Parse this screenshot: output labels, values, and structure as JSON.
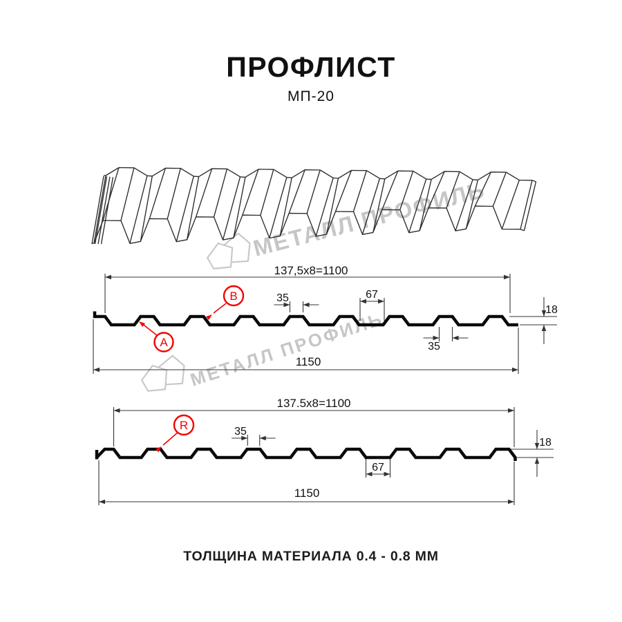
{
  "title": "ПРОФЛИСТ",
  "subtitle": "МП-20",
  "footer": "ТОЛЩИНА МАТЕРИАЛА 0.4 - 0.8 ММ",
  "watermark": {
    "text": "МЕТАЛЛ ПРОФИЛЬ"
  },
  "colors": {
    "accent_red": "#f40000",
    "line": "#111111",
    "watermark": "#c6c6c6"
  },
  "diagram_top": {
    "module_width": "137,5x8=1100",
    "rib_top_width": "35",
    "valley_width": "67",
    "profile_height": "18",
    "edge_rib_width": "35",
    "overall_width": "1150",
    "label_a": "A",
    "label_b": "B"
  },
  "diagram_bottom": {
    "module_width": "137.5x8=1100",
    "rib_top_width": "35",
    "valley_width": "67",
    "profile_height": "18",
    "overall_width": "1150",
    "label_r": "R"
  }
}
